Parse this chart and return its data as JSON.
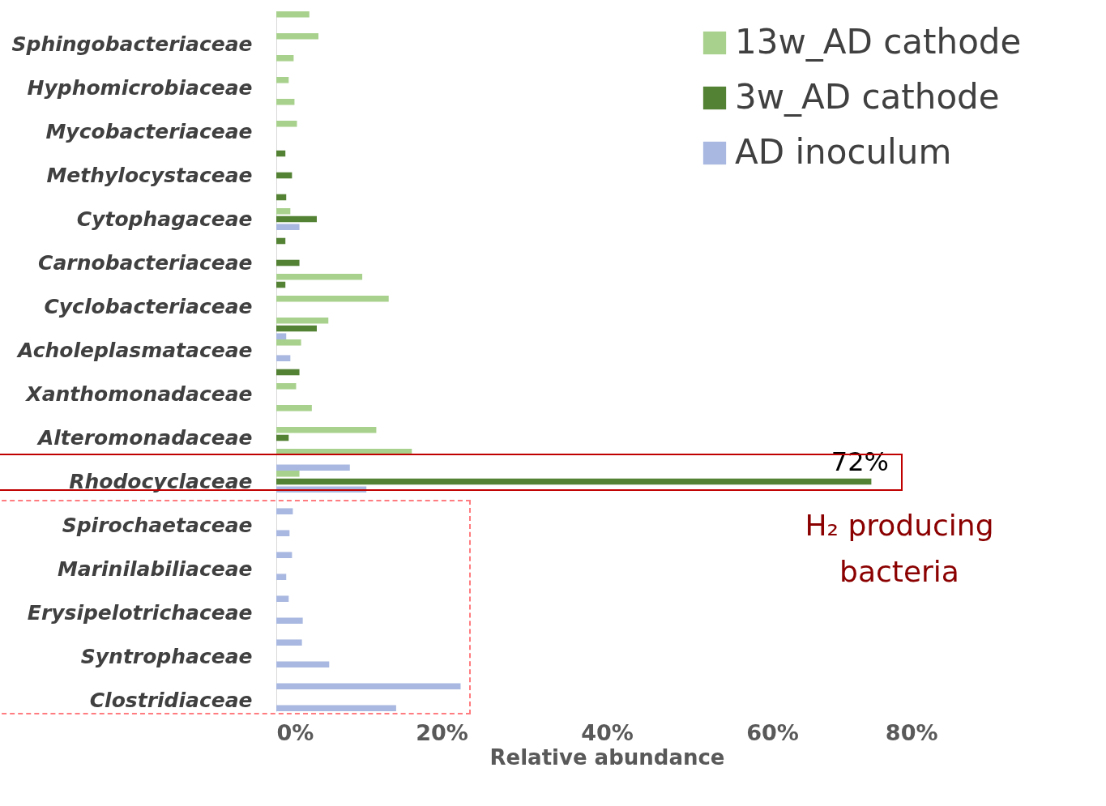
{
  "chart_data": {
    "type": "bar",
    "orientation": "horizontal",
    "xlabel": "Relative abundance",
    "categories": [
      null,
      "Sphingobacteriaceae",
      null,
      "Hyphomicrobiaceae",
      null,
      "Mycobacteriaceae",
      null,
      "Methylocystaceae",
      null,
      "Cytophagaceae",
      null,
      "Carnobacteriaceae",
      null,
      "Cyclobacteriaceae",
      null,
      "Acholeplasmataceae",
      null,
      "Xanthomonadaceae",
      null,
      "Alteromonadaceae",
      null,
      "Rhodocyclaceae",
      null,
      "Spirochaetaceae",
      null,
      "Marinilabiliaceae",
      null,
      "Erysipelotrichaceae",
      null,
      "Syntrophaceae",
      null,
      "Clostridiaceae"
    ],
    "series": [
      {
        "name": "13w_AD cathode",
        "color": "#a9d18e",
        "values": [
          4.0,
          5.1,
          2.1,
          1.5,
          2.2,
          2.5,
          null,
          null,
          null,
          1.7,
          null,
          null,
          10.4,
          13.6,
          6.3,
          3.0,
          null,
          2.4,
          4.3,
          12.1,
          16.4,
          2.8,
          null,
          null,
          null,
          null,
          null,
          null,
          null,
          null,
          null,
          null
        ]
      },
      {
        "name": "3w_AD cathode",
        "color": "#548235",
        "values": [
          null,
          null,
          null,
          null,
          null,
          null,
          1.1,
          1.9,
          1.2,
          4.9,
          1.1,
          2.8,
          1.1,
          null,
          4.9,
          null,
          2.8,
          null,
          null,
          1.5,
          null,
          72,
          null,
          null,
          null,
          null,
          null,
          null,
          null,
          null,
          null,
          null
        ],
        "value_labels": [
          null,
          null,
          null,
          null,
          null,
          null,
          null,
          null,
          null,
          null,
          null,
          null,
          null,
          null,
          null,
          null,
          null,
          null,
          null,
          null,
          null,
          "72%",
          null,
          null,
          null,
          null,
          null,
          null,
          null,
          null,
          null,
          null
        ]
      },
      {
        "name": "AD inoculum",
        "color": "#a9b8e0",
        "values": [
          null,
          null,
          null,
          null,
          null,
          null,
          null,
          null,
          null,
          2.8,
          null,
          null,
          null,
          null,
          1.2,
          1.7,
          null,
          null,
          null,
          null,
          8.9,
          10.9,
          2.0,
          1.6,
          1.9,
          1.2,
          1.5,
          3.2,
          3.1,
          6.4,
          22.3,
          14.5
        ]
      }
    ],
    "xlim": [
      0,
      80
    ],
    "xticks": [
      {
        "value": 0,
        "label": "0%"
      },
      {
        "value": 20,
        "label": "20%"
      },
      {
        "value": 40,
        "label": "40%"
      },
      {
        "value": 60,
        "label": "60%"
      },
      {
        "value": 80,
        "label": "80%"
      }
    ],
    "annotations": [
      "H₂ producing bacteria"
    ],
    "legend": "top right",
    "grid": false
  }
}
